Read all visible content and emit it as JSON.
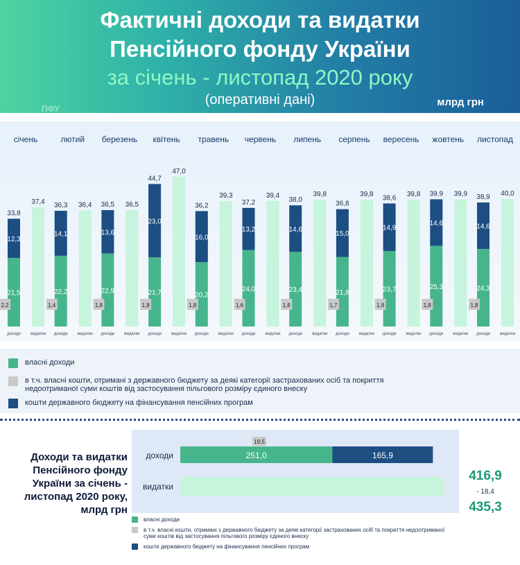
{
  "header": {
    "title_line1": "Фактичні доходи та видатки",
    "title_line2": "Пенсійного фонду України",
    "period": "за січень - листопад 2020 року",
    "note": "(оперативні дані)",
    "unit": "млрд грн"
  },
  "colors": {
    "own_revenue": "#47b58c",
    "state_budget": "#1c4e82",
    "expenses": "#c6f4dc",
    "grey_box": "#c9c9c9"
  },
  "chart_data": [
    {
      "type": "bar",
      "months": [
        "січень",
        "лютий",
        "березень",
        "квітень",
        "травень",
        "червень",
        "липень",
        "серпень",
        "вересень",
        "жовтень",
        "листопад"
      ],
      "bar_labels": {
        "income": "доходи",
        "expenses": "видатки"
      },
      "income": {
        "own": [
          21.5,
          22.2,
          22.9,
          21.7,
          20.2,
          24.0,
          23.4,
          21.8,
          23.7,
          25.3,
          24.3
        ],
        "state_budget": [
          12.3,
          14.1,
          13.6,
          23.0,
          16.0,
          13.2,
          14.6,
          15.0,
          14.9,
          14.6,
          14.6
        ],
        "own_from_state_budget": [
          2.2,
          1.4,
          1.8,
          1.8,
          1.8,
          1.6,
          1.8,
          1.7,
          1.8,
          1.8,
          1.8
        ],
        "total": [
          33.8,
          36.3,
          36.5,
          44.7,
          36.2,
          37.2,
          38.0,
          36.8,
          38.6,
          39.9,
          38.9
        ]
      },
      "expenses": [
        37.4,
        36.4,
        36.5,
        47.0,
        39.3,
        39.4,
        39.8,
        39.8,
        39.8,
        39.9,
        40.0
      ],
      "value_labels": {
        "own": [
          "21,5",
          "22,2",
          "22,9",
          "21,7",
          "20,2",
          "24,0",
          "23,4",
          "21,8",
          "23,7",
          "25,3",
          "24,3"
        ],
        "state_budget": [
          "12,3",
          "14,1",
          "13,6",
          "23,0",
          "16,0",
          "13,2",
          "14,6",
          "15,0",
          "14,9",
          "14,6",
          "14,6"
        ],
        "own_from_state_budget": [
          "2,2",
          "1,4",
          "1,8",
          "1,8",
          "1,8",
          "1,6",
          "1,8",
          "1,7",
          "1,8",
          "1,8",
          "1,8"
        ],
        "income_total": [
          "33,8",
          "36,3",
          "36,5",
          "44,7",
          "36,2",
          "37,2",
          "38,0",
          "36,8",
          "38,6",
          "39,9",
          "38,9"
        ],
        "expenses": [
          "37,4",
          "36,4",
          "36,5",
          "47,0",
          "39,3",
          "39,4",
          "39,8",
          "39,8",
          "39,8",
          "39,9",
          "40,0"
        ]
      }
    },
    {
      "type": "bar",
      "orientation": "horizontal",
      "title": "Доходи та видатки Пенсійного фонду України за січень - листопад 2020 року, млрд грн",
      "categories": [
        "доходи",
        "видатки"
      ],
      "income": {
        "own": 251.0,
        "state_budget": 165.9,
        "own_from_state_budget": 19.5,
        "total": 416.9
      },
      "expenses_total": 435.3,
      "difference": -18.4,
      "value_labels": {
        "own": "251,0",
        "state_budget": "165,9",
        "own_from_state_budget": "19,5",
        "income_total": "416,9",
        "expenses_total": "435,3",
        "difference": "- 18,4"
      }
    }
  ],
  "legend": {
    "own": "власні доходи",
    "own_from_state": "в т.ч. власні кошти, отримані з державного бюджету за деякі категорії застрахованих осіб та покриття недоотриманої суми коштів від застосування пільгового розміру єдиного внеску",
    "state_budget": "кошти державного бюджету на фінансування пенсійних програм"
  },
  "bottom_title": "Доходи та видатки Пенсійного фонду України за січень - листопад 2020 року, млрд грн",
  "watermark": "ПФУ"
}
